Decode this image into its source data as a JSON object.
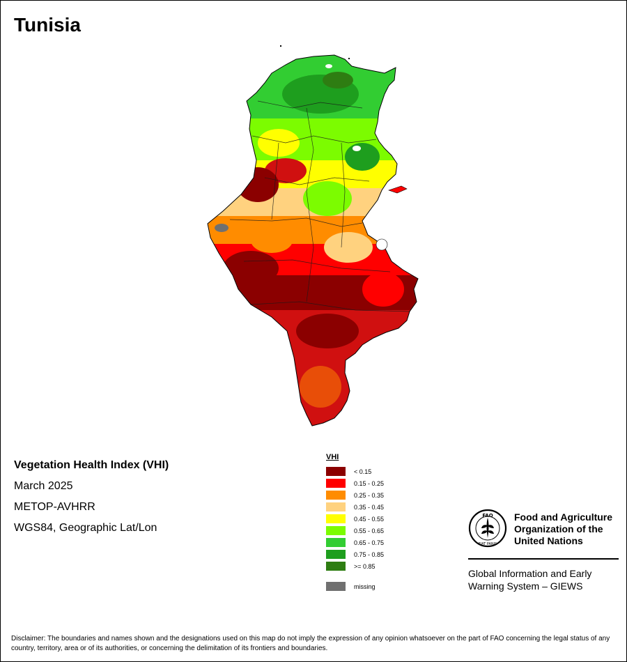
{
  "title": "Tunisia",
  "map_info": {
    "index_title": "Vegetation Health Index (VHI)",
    "date": "March 2025",
    "sensor": "METOP-AVHRR",
    "projection": "WGS84, Geographic Lat/Lon"
  },
  "legend": {
    "title": "VHI",
    "classes": [
      {
        "label": "< 0.15",
        "color": "#8B0000"
      },
      {
        "label": "0.15 - 0.25",
        "color": "#FF0000"
      },
      {
        "label": "0.25 - 0.35",
        "color": "#FF8C00"
      },
      {
        "label": "0.35 - 0.45",
        "color": "#FFD27F"
      },
      {
        "label": "0.45 - 0.55",
        "color": "#FFFF00"
      },
      {
        "label": "0.55 - 0.65",
        "color": "#7CFC00"
      },
      {
        "label": "0.65 - 0.75",
        "color": "#32CD32"
      },
      {
        "label": "0.75 - 0.85",
        "color": "#1E9E1E"
      },
      {
        "label": ">= 0.85",
        "color": "#2E7D12"
      }
    ],
    "missing": {
      "label": "missing",
      "color": "#707070"
    }
  },
  "organization": {
    "name_lines": [
      "Food and Agriculture",
      "Organization of the",
      "United Nations"
    ],
    "logo_text": "FAO",
    "logo_motto": "FIAT PANIS",
    "program_lines": [
      "Global Information and Early",
      "Warning System – GIEWS"
    ]
  },
  "disclaimer": "Disclaimer: The boundaries and names shown and the designations used on this map do not imply the expression of any opinion whatsoever on the part of FAO concerning the legal status of any country, territory, area or of its authorities, or concerning the delimitation of its frontiers and boundaries."
}
